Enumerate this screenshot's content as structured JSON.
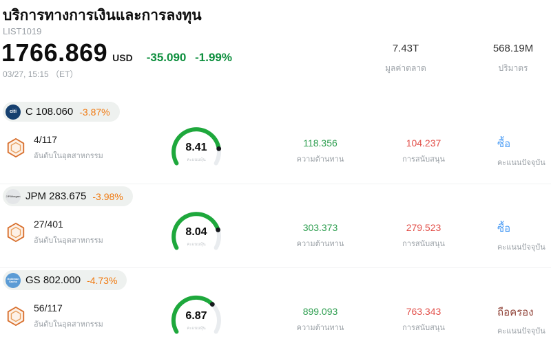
{
  "header": {
    "title": "บริการทางการเงินและการลงทุน",
    "list_id": "LIST1019",
    "price": "1766.869",
    "currency": "USD",
    "change": "-35.090 -1.99%",
    "timestamp": "03/27, 15:15 （ET）",
    "stats": [
      {
        "value": "7.43T",
        "label": "มูลค่าตลาด"
      },
      {
        "value": "568.19M",
        "label": "ปริมาตร"
      }
    ]
  },
  "colors": {
    "header_change_green": "#0e8f3e",
    "pill_change_orange": "#f0790f",
    "resistance_green": "#2d9e4f",
    "support_red": "#e2504a",
    "gauge_green": "#1ea83c",
    "gauge_track": "#e9ecef",
    "gauge_dot": "#15181c"
  },
  "rows": [
    {
      "ticker_price": "C 108.060",
      "change": "-3.87%",
      "logo_text": "citi",
      "logo_bg": "#16406f",
      "logo_fg": "#ffffff",
      "rank": "4/117",
      "rank_label": "อันดับในอุตสาหกรรม",
      "score": "8.41",
      "score_label": "คะแนนหุ้น",
      "resistance": "118.356",
      "resistance_label": "ความต้านทาน",
      "support": "104.237",
      "support_label": "การสนับสนุน",
      "signal": "ซื้อ",
      "signal_color": "#4d9df5",
      "signal_label": "คะแนนปัจจุบัน"
    },
    {
      "ticker_price": "JPM 283.675",
      "change": "-3.98%",
      "logo_text": "J.P.Morgan",
      "logo_bg": "#e4e6e8",
      "logo_fg": "#555555",
      "rank": "27/401",
      "rank_label": "อันดับในอุตสาหกรรม",
      "score": "8.04",
      "score_label": "คะแนนหุ้น",
      "resistance": "303.373",
      "resistance_label": "ความต้านทาน",
      "support": "279.523",
      "support_label": "การสนับสนุน",
      "signal": "ซื้อ",
      "signal_color": "#4d9df5",
      "signal_label": "คะแนนปัจจุบัน"
    },
    {
      "ticker_price": "GS 802.000",
      "change": "-4.73%",
      "logo_text": "Goldman Sachs",
      "logo_bg": "#5b9bd5",
      "logo_fg": "#ffffff",
      "rank": "56/117",
      "rank_label": "อันดับในอุตสาหกรรม",
      "score": "6.87",
      "score_label": "คะแนนหุ้น",
      "resistance": "899.093",
      "resistance_label": "ความต้านทาน",
      "support": "763.343",
      "support_label": "การสนับสนุน",
      "signal": "ถือครอง",
      "signal_color": "#8f4136",
      "signal_label": "คะแนนปัจจุบัน"
    }
  ]
}
